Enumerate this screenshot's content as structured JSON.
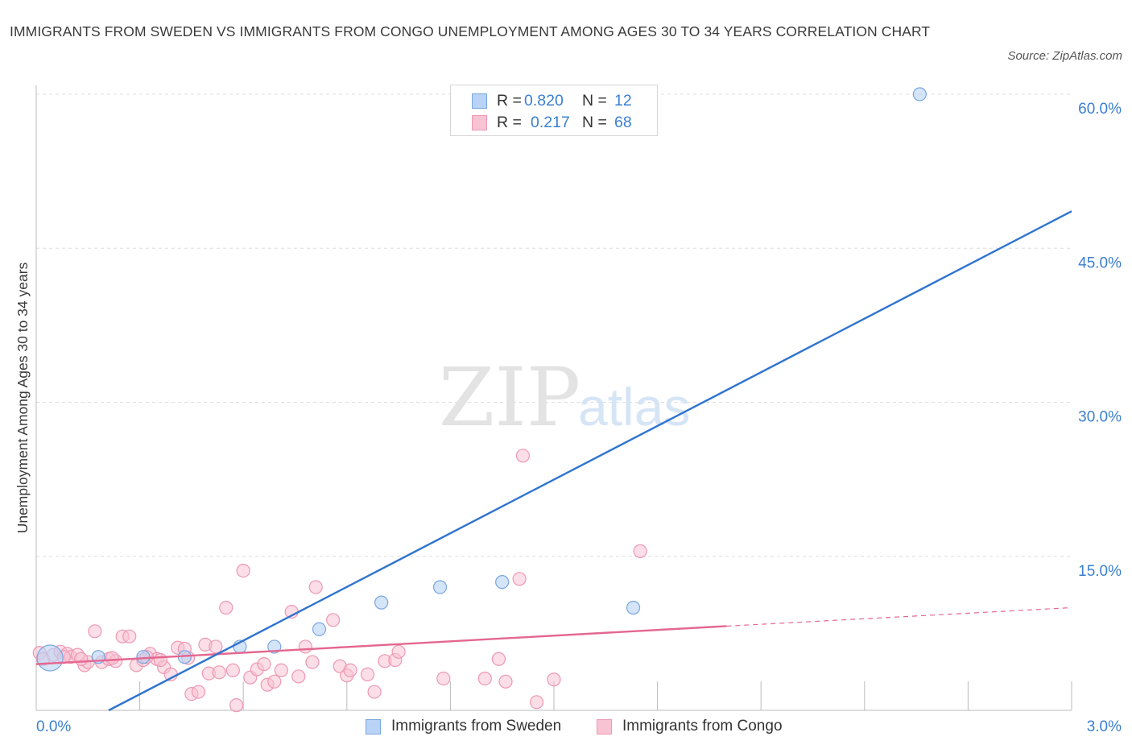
{
  "title": "IMMIGRANTS FROM SWEDEN VS IMMIGRANTS FROM CONGO UNEMPLOYMENT AMONG AGES 30 TO 34 YEARS CORRELATION CHART",
  "source": "Source: ZipAtlas.com",
  "watermark": {
    "zip": "ZIP",
    "atlas": "atlas"
  },
  "legend": {
    "sweden": {
      "r_label": "R =",
      "r_value": "0.820",
      "n_label": "N =",
      "n_value": "12"
    },
    "congo": {
      "r_label": "R =",
      "r_value": "0.217",
      "n_label": "N =",
      "n_value": "68"
    }
  },
  "colors": {
    "sweden_fill": "#b8d3f5",
    "sweden_stroke": "#7aa6e0",
    "sweden_line": "#2f74d0",
    "congo_fill": "#f8c3d3",
    "congo_stroke": "#ee98b2",
    "congo_line": "#e4678f",
    "tick_label": "#3b7fd1",
    "grid": "#dddddd"
  },
  "chart_data": {
    "type": "scatter",
    "title": "IMMIGRANTS FROM SWEDEN VS IMMIGRANTS FROM CONGO UNEMPLOYMENT AMONG AGES 30 TO 34 YEARS CORRELATION CHART",
    "xlabel": "",
    "ylabel": "Unemployment Among Ages 30 to 34 years",
    "xlim": [
      0,
      3.0
    ],
    "ylim": [
      0,
      60
    ],
    "x_tick_labels": [
      "0.0%",
      "3.0%"
    ],
    "y_ticks": [
      15,
      30,
      45,
      60
    ],
    "y_tick_labels": [
      "15.0%",
      "30.0%",
      "45.0%",
      "60.0%"
    ],
    "grid": true,
    "legend_position": "top-center and bottom",
    "series": [
      {
        "name": "Immigrants from Sweden",
        "points": [
          [
            0.04,
            5.1
          ],
          [
            0.18,
            5.2
          ],
          [
            0.31,
            5.2
          ],
          [
            0.43,
            5.2
          ],
          [
            0.59,
            6.2
          ],
          [
            0.69,
            6.2
          ],
          [
            0.82,
            7.9
          ],
          [
            1.0,
            10.5
          ],
          [
            1.17,
            12.0
          ],
          [
            1.35,
            12.5
          ],
          [
            1.73,
            10.0
          ],
          [
            2.56,
            60.0
          ]
        ],
        "trend": {
          "x": [
            0.21,
            3.0
          ],
          "y": [
            0.0,
            48.6
          ]
        }
      },
      {
        "name": "Immigrants from Congo",
        "points": [
          [
            0.01,
            5.6
          ],
          [
            0.02,
            5.0
          ],
          [
            0.05,
            5.4
          ],
          [
            0.07,
            5.7
          ],
          [
            0.09,
            5.5
          ],
          [
            0.1,
            5.2
          ],
          [
            0.12,
            5.4
          ],
          [
            0.14,
            4.4
          ],
          [
            0.15,
            4.7
          ],
          [
            0.17,
            7.7
          ],
          [
            0.19,
            4.7
          ],
          [
            0.21,
            5.0
          ],
          [
            0.23,
            4.8
          ],
          [
            0.25,
            7.2
          ],
          [
            0.27,
            7.2
          ],
          [
            0.29,
            4.4
          ],
          [
            0.31,
            4.9
          ],
          [
            0.33,
            5.5
          ],
          [
            0.35,
            5.0
          ],
          [
            0.37,
            4.2
          ],
          [
            0.39,
            3.5
          ],
          [
            0.41,
            6.1
          ],
          [
            0.43,
            6.0
          ],
          [
            0.45,
            1.6
          ],
          [
            0.47,
            1.8
          ],
          [
            0.49,
            6.4
          ],
          [
            0.5,
            3.6
          ],
          [
            0.52,
            6.2
          ],
          [
            0.53,
            3.7
          ],
          [
            0.55,
            10.0
          ],
          [
            0.57,
            3.9
          ],
          [
            0.58,
            0.5
          ],
          [
            0.6,
            13.6
          ],
          [
            0.62,
            3.2
          ],
          [
            0.64,
            4.0
          ],
          [
            0.66,
            4.5
          ],
          [
            0.67,
            2.5
          ],
          [
            0.69,
            2.8
          ],
          [
            0.71,
            3.9
          ],
          [
            0.74,
            9.6
          ],
          [
            0.76,
            3.3
          ],
          [
            0.78,
            6.2
          ],
          [
            0.8,
            4.7
          ],
          [
            0.81,
            12.0
          ],
          [
            0.86,
            8.8
          ],
          [
            0.88,
            4.3
          ],
          [
            0.9,
            3.4
          ],
          [
            0.91,
            3.9
          ],
          [
            0.96,
            3.5
          ],
          [
            0.98,
            1.8
          ],
          [
            1.01,
            4.8
          ],
          [
            1.04,
            4.9
          ],
          [
            1.05,
            5.7
          ],
          [
            1.18,
            3.1
          ],
          [
            1.3,
            3.1
          ],
          [
            1.34,
            5.0
          ],
          [
            1.36,
            2.8
          ],
          [
            1.4,
            12.8
          ],
          [
            1.41,
            24.8
          ],
          [
            1.45,
            0.8
          ],
          [
            1.5,
            3.0
          ],
          [
            1.75,
            15.5
          ],
          [
            0.08,
            5.2
          ],
          [
            0.13,
            5.0
          ],
          [
            0.22,
            5.1
          ],
          [
            0.32,
            5.2
          ],
          [
            0.36,
            4.9
          ],
          [
            0.44,
            5.1
          ]
        ],
        "trend": {
          "x": [
            0.0,
            2.0
          ],
          "y": [
            4.5,
            8.2
          ],
          "dashed_extension": {
            "x": [
              2.0,
              3.0
            ],
            "y": [
              8.2,
              10.0
            ]
          }
        }
      }
    ]
  },
  "bottom_legend": [
    "Immigrants from Sweden",
    "Immigrants from Congo"
  ]
}
